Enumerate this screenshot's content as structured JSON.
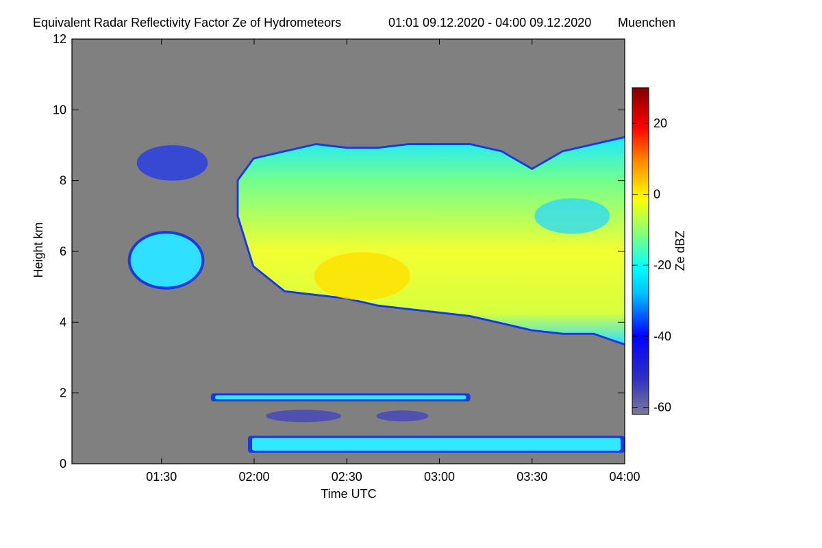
{
  "chart_data": {
    "type": "heatmap",
    "title": "Equivalent Radar Reflectivity Factor Ze of Hydrometeors",
    "period": "01:01 09.12.2020 - 04:00 09.12.2020",
    "location": "Muenchen",
    "xlabel": "Time UTC",
    "ylabel": "Height km",
    "x_ticks": [
      "01:30",
      "02:00",
      "02:30",
      "03:00",
      "03:30",
      "04:00"
    ],
    "y_ticks": [
      "0",
      "2",
      "4",
      "6",
      "8",
      "10",
      "12"
    ],
    "xlim": [
      "01:01",
      "04:00"
    ],
    "ylim": [
      0,
      12
    ],
    "colorbar": {
      "label": "Ze dBZ",
      "range": [
        -62,
        30
      ],
      "ticks": [
        "20",
        "0",
        "-20",
        "-40",
        "-60"
      ],
      "background_color": "#808080"
    },
    "echo_regions": [
      {
        "name": "main cloud top",
        "x": [
          "01:55",
          "02:00",
          "02:10",
          "02:20",
          "02:30",
          "02:40",
          "02:50",
          "03:00",
          "03:10",
          "03:20",
          "03:30",
          "03:40",
          "03:50",
          "04:00"
        ],
        "y": [
          8.0,
          8.6,
          8.8,
          9.0,
          8.9,
          8.9,
          9.0,
          9.0,
          9.0,
          8.8,
          8.3,
          8.8,
          9.0,
          9.2
        ]
      },
      {
        "name": "main cloud base",
        "x": [
          "01:55",
          "02:00",
          "02:10",
          "02:20",
          "02:30",
          "02:40",
          "02:50",
          "03:00",
          "03:10",
          "03:20",
          "03:30",
          "03:40",
          "03:50",
          "04:00"
        ],
        "y": [
          7.0,
          5.6,
          4.9,
          4.8,
          4.7,
          4.5,
          4.4,
          4.3,
          4.2,
          4.0,
          3.8,
          3.7,
          3.7,
          3.4
        ]
      },
      {
        "name": "peak reflectivity",
        "x": "02:35",
        "y": 5.3,
        "ze_dbz": 0
      },
      {
        "name": "mid-level echo",
        "x": [
          "01:20",
          "01:43"
        ],
        "y": [
          5.0,
          6.5
        ],
        "ze_dbz": -20
      },
      {
        "name": "upper fragments",
        "x": [
          "01:22",
          "01:45"
        ],
        "y": [
          8.0,
          9.0
        ],
        "ze_dbz": -40
      },
      {
        "name": "layer near 1.8 km",
        "x": [
          "01:46",
          "03:10"
        ],
        "y": [
          1.8,
          1.95
        ],
        "ze_dbz": -30
      },
      {
        "name": "layer near 0.5 km",
        "x": [
          "01:58",
          "04:00"
        ],
        "y": [
          0.35,
          0.75
        ],
        "ze_dbz": -30
      }
    ]
  }
}
